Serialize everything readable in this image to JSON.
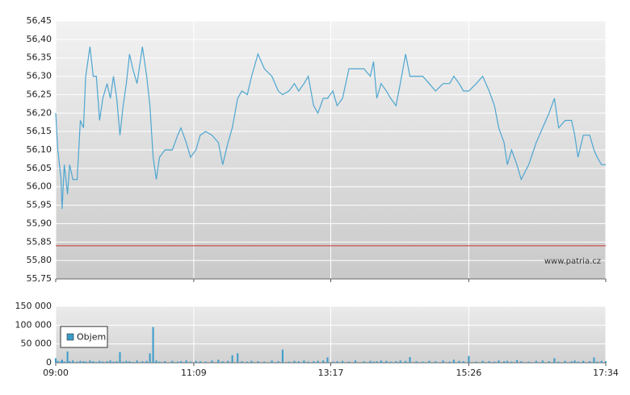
{
  "chart_data": [
    {
      "type": "line",
      "color": "#4ea6d0",
      "x": [
        "09:00",
        "09:02",
        "09:05",
        "09:06",
        "09:08",
        "09:11",
        "09:13",
        "09:16",
        "09:20",
        "09:23",
        "09:26",
        "09:28",
        "09:32",
        "09:35",
        "09:38",
        "09:41",
        "09:44",
        "09:48",
        "09:51",
        "09:54",
        "09:57",
        "10:00",
        "10:03",
        "10:06",
        "10:09",
        "10:12",
        "10:16",
        "10:21",
        "10:25",
        "10:28",
        "10:31",
        "10:34",
        "10:37",
        "10:42",
        "10:49",
        "10:54",
        "10:57",
        "11:02",
        "11:06",
        "11:11",
        "11:15",
        "11:20",
        "11:26",
        "11:32",
        "11:36",
        "11:41",
        "11:45",
        "11:50",
        "11:54",
        "11:59",
        "12:03",
        "12:09",
        "12:15",
        "12:22",
        "12:28",
        "12:32",
        "12:38",
        "12:43",
        "12:47",
        "12:52",
        "12:56",
        "13:01",
        "13:05",
        "13:10",
        "13:14",
        "13:19",
        "13:23",
        "13:28",
        "13:34",
        "13:40",
        "13:48",
        "13:54",
        "13:57",
        "14:00",
        "14:04",
        "14:09",
        "14:13",
        "14:18",
        "14:22",
        "14:27",
        "14:31",
        "14:37",
        "14:43",
        "14:49",
        "14:55",
        "15:02",
        "15:08",
        "15:12",
        "15:17",
        "15:21",
        "15:26",
        "15:33",
        "15:39",
        "15:45",
        "15:50",
        "15:54",
        "15:59",
        "16:02",
        "16:06",
        "16:11",
        "16:15",
        "16:22",
        "16:29",
        "16:35",
        "16:41",
        "16:46",
        "16:50",
        "16:56",
        "17:02",
        "17:05",
        "17:08",
        "17:13",
        "17:19",
        "17:23",
        "17:26",
        "17:30",
        "17:34"
      ],
      "values": [
        56.2,
        56.1,
        56.02,
        55.94,
        56.06,
        55.98,
        56.06,
        56.02,
        56.02,
        56.18,
        56.16,
        56.3,
        56.38,
        56.3,
        56.3,
        56.18,
        56.24,
        56.28,
        56.24,
        56.3,
        56.24,
        56.14,
        56.22,
        56.28,
        56.36,
        56.32,
        56.28,
        56.38,
        56.3,
        56.22,
        56.08,
        56.02,
        56.08,
        56.1,
        56.1,
        56.14,
        56.16,
        56.12,
        56.08,
        56.1,
        56.14,
        56.15,
        56.14,
        56.12,
        56.06,
        56.12,
        56.16,
        56.24,
        56.26,
        56.25,
        56.3,
        56.36,
        56.32,
        56.3,
        56.26,
        56.25,
        56.26,
        56.28,
        56.26,
        56.28,
        56.3,
        56.22,
        56.2,
        56.24,
        56.24,
        56.26,
        56.22,
        56.24,
        56.32,
        56.32,
        56.32,
        56.3,
        56.34,
        56.24,
        56.28,
        56.26,
        56.24,
        56.22,
        56.28,
        56.36,
        56.3,
        56.3,
        56.3,
        56.28,
        56.26,
        56.28,
        56.28,
        56.3,
        56.28,
        56.26,
        56.26,
        56.28,
        56.3,
        56.26,
        56.22,
        56.16,
        56.12,
        56.06,
        56.1,
        56.06,
        56.02,
        56.06,
        56.12,
        56.16,
        56.2,
        56.24,
        56.16,
        56.18,
        56.18,
        56.14,
        56.08,
        56.14,
        56.14,
        56.1,
        56.08,
        56.06,
        56.06
      ],
      "xlim": [
        "09:00",
        "17:34"
      ],
      "ylim": [
        55.75,
        56.45
      ],
      "yticks": [
        {
          "value": 55.75,
          "label": "55,75"
        },
        {
          "value": 55.8,
          "label": "55,80"
        },
        {
          "value": 55.85,
          "label": "55,85"
        },
        {
          "value": 55.9,
          "label": "55,90"
        },
        {
          "value": 55.95,
          "label": "55,95"
        },
        {
          "value": 56.0,
          "label": "56,00"
        },
        {
          "value": 56.05,
          "label": "56,05"
        },
        {
          "value": 56.1,
          "label": "56,10"
        },
        {
          "value": 56.15,
          "label": "56,15"
        },
        {
          "value": 56.2,
          "label": "56,20"
        },
        {
          "value": 56.25,
          "label": "56,25"
        },
        {
          "value": 56.3,
          "label": "56,30"
        },
        {
          "value": 56.35,
          "label": "56,35"
        },
        {
          "value": 56.4,
          "label": "56,40"
        },
        {
          "value": 56.45,
          "label": "56,45"
        }
      ],
      "reference_line": {
        "value": 55.84,
        "color": "#cc3333"
      },
      "grid": true,
      "watermark": "www.patria.cz"
    },
    {
      "type": "bar",
      "series": [
        {
          "name": "Objem",
          "color": "#3a9bc9",
          "values": [
            12000,
            5000,
            4000,
            8000,
            3000,
            30000,
            4000,
            6000,
            3000,
            5000,
            4000,
            3000,
            6000,
            4000,
            2000,
            5000,
            3000,
            4000,
            6000,
            3000,
            4000,
            28000,
            3000,
            5000,
            4000,
            2000,
            6000,
            4000,
            5000,
            25000,
            95000,
            6000,
            3000,
            4000,
            5000,
            3000,
            4000,
            6000,
            3000,
            5000,
            4000,
            3000,
            6000,
            8000,
            4000,
            5000,
            20000,
            25000,
            4000,
            3000,
            5000,
            4000,
            3000,
            6000,
            4000,
            35000,
            3000,
            5000,
            4000,
            6000,
            3000,
            4000,
            5000,
            6000,
            14000,
            3000,
            4000,
            5000,
            3000,
            6000,
            4000,
            5000,
            3000,
            4000,
            6000,
            5000,
            3000,
            4000,
            6000,
            5000,
            15000,
            4000,
            3000,
            5000,
            4000,
            6000,
            3000,
            8000,
            5000,
            4000,
            18000,
            3000,
            5000,
            4000,
            3000,
            6000,
            4000,
            5000,
            3000,
            7000,
            4000,
            3000,
            5000,
            6000,
            4000,
            12000,
            3000,
            5000,
            4000,
            6000,
            3000,
            5000,
            4000,
            14000,
            3000,
            5000,
            4000
          ]
        }
      ],
      "xlim": [
        "09:00",
        "17:34"
      ],
      "xticks": [
        "09:00",
        "11:09",
        "13:17",
        "15:26",
        "17:34"
      ],
      "ylim": [
        0,
        150000
      ],
      "yticks": [
        0,
        {
          "value": 50000,
          "label": "50 000"
        },
        {
          "value": 100000,
          "label": "100 000"
        },
        {
          "value": 150000,
          "label": "150 000"
        }
      ],
      "grid": true,
      "legend": "upper-left"
    }
  ]
}
